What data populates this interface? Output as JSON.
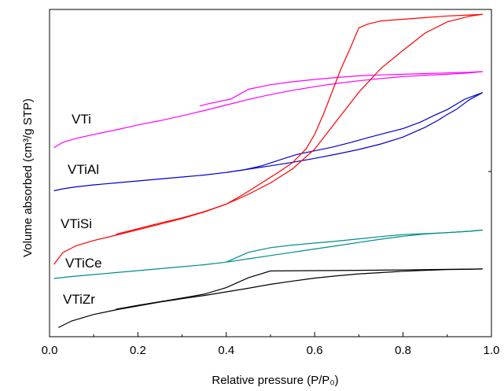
{
  "chart_data": {
    "type": "line",
    "xlabel": "Relative pressure (P/P₀)",
    "ylabel": "Volume absorbed (cm³/g STP)",
    "xlim": [
      0,
      1
    ],
    "ylim": [
      0,
      1
    ],
    "x_ticks": [
      "0.0",
      "0.2",
      "0.4",
      "0.6",
      "0.8",
      "1.0"
    ],
    "y_ticks": [],
    "grid": false,
    "series": [
      {
        "name": "VTi",
        "color": "#ff00ff",
        "adsorption": [
          [
            0.01,
            0.578
          ],
          [
            0.03,
            0.594
          ],
          [
            0.06,
            0.606
          ],
          [
            0.1,
            0.618
          ],
          [
            0.15,
            0.632
          ],
          [
            0.2,
            0.647
          ],
          [
            0.25,
            0.66
          ],
          [
            0.3,
            0.675
          ],
          [
            0.35,
            0.691
          ],
          [
            0.4,
            0.708
          ],
          [
            0.45,
            0.725
          ],
          [
            0.5,
            0.74
          ],
          [
            0.55,
            0.753
          ],
          [
            0.6,
            0.764
          ],
          [
            0.65,
            0.774
          ],
          [
            0.7,
            0.782
          ],
          [
            0.75,
            0.789
          ],
          [
            0.8,
            0.795
          ],
          [
            0.85,
            0.799
          ],
          [
            0.9,
            0.802
          ],
          [
            0.95,
            0.806
          ],
          [
            0.98,
            0.81
          ]
        ],
        "desorption": [
          [
            0.98,
            0.81
          ],
          [
            0.95,
            0.808
          ],
          [
            0.9,
            0.806
          ],
          [
            0.85,
            0.804
          ],
          [
            0.8,
            0.802
          ],
          [
            0.75,
            0.8
          ],
          [
            0.7,
            0.797
          ],
          [
            0.65,
            0.792
          ],
          [
            0.6,
            0.786
          ],
          [
            0.55,
            0.779
          ],
          [
            0.5,
            0.77
          ],
          [
            0.45,
            0.756
          ],
          [
            0.41,
            0.726
          ],
          [
            0.36,
            0.712
          ],
          [
            0.34,
            0.705
          ]
        ]
      },
      {
        "name": "VTiAl",
        "color": "#0000cc",
        "adsorption": [
          [
            0.01,
            0.446
          ],
          [
            0.03,
            0.452
          ],
          [
            0.06,
            0.458
          ],
          [
            0.1,
            0.464
          ],
          [
            0.15,
            0.47
          ],
          [
            0.2,
            0.476
          ],
          [
            0.25,
            0.482
          ],
          [
            0.3,
            0.488
          ],
          [
            0.35,
            0.494
          ],
          [
            0.4,
            0.502
          ],
          [
            0.45,
            0.512
          ],
          [
            0.5,
            0.522
          ],
          [
            0.55,
            0.533
          ],
          [
            0.6,
            0.545
          ],
          [
            0.65,
            0.558
          ],
          [
            0.7,
            0.572
          ],
          [
            0.75,
            0.589
          ],
          [
            0.8,
            0.61
          ],
          [
            0.85,
            0.64
          ],
          [
            0.88,
            0.662
          ],
          [
            0.9,
            0.679
          ],
          [
            0.92,
            0.694
          ],
          [
            0.95,
            0.724
          ],
          [
            0.98,
            0.746
          ]
        ],
        "desorption": [
          [
            0.98,
            0.746
          ],
          [
            0.96,
            0.736
          ],
          [
            0.94,
            0.726
          ],
          [
            0.92,
            0.71
          ],
          [
            0.9,
            0.694
          ],
          [
            0.87,
            0.676
          ],
          [
            0.84,
            0.656
          ],
          [
            0.8,
            0.636
          ],
          [
            0.76,
            0.622
          ],
          [
            0.72,
            0.608
          ],
          [
            0.68,
            0.593
          ],
          [
            0.64,
            0.579
          ],
          [
            0.6,
            0.568
          ],
          [
            0.56,
            0.557
          ],
          [
            0.52,
            0.54
          ],
          [
            0.48,
            0.522
          ],
          [
            0.44,
            0.51
          ],
          [
            0.4,
            0.502
          ]
        ]
      },
      {
        "name": "VTiSi",
        "color": "#ff0000",
        "adsorption": [
          [
            0.01,
            0.221
          ],
          [
            0.03,
            0.257
          ],
          [
            0.06,
            0.278
          ],
          [
            0.1,
            0.294
          ],
          [
            0.15,
            0.31
          ],
          [
            0.2,
            0.327
          ],
          [
            0.25,
            0.344
          ],
          [
            0.3,
            0.361
          ],
          [
            0.35,
            0.381
          ],
          [
            0.4,
            0.405
          ],
          [
            0.45,
            0.435
          ],
          [
            0.5,
            0.47
          ],
          [
            0.55,
            0.513
          ],
          [
            0.6,
            0.573
          ],
          [
            0.65,
            0.66
          ],
          [
            0.7,
            0.747
          ],
          [
            0.75,
            0.82
          ],
          [
            0.8,
            0.875
          ],
          [
            0.85,
            0.928
          ],
          [
            0.9,
            0.962
          ],
          [
            0.95,
            0.979
          ],
          [
            0.98,
            0.985
          ]
        ],
        "desorption": [
          [
            0.98,
            0.985
          ],
          [
            0.95,
            0.983
          ],
          [
            0.9,
            0.98
          ],
          [
            0.85,
            0.975
          ],
          [
            0.8,
            0.97
          ],
          [
            0.75,
            0.965
          ],
          [
            0.72,
            0.955
          ],
          [
            0.7,
            0.944
          ],
          [
            0.68,
            0.88
          ],
          [
            0.66,
            0.82
          ],
          [
            0.64,
            0.75
          ],
          [
            0.62,
            0.68
          ],
          [
            0.6,
            0.618
          ],
          [
            0.58,
            0.573
          ],
          [
            0.55,
            0.532
          ],
          [
            0.52,
            0.504
          ],
          [
            0.48,
            0.47
          ],
          [
            0.44,
            0.436
          ],
          [
            0.4,
            0.405
          ],
          [
            0.35,
            0.382
          ],
          [
            0.3,
            0.363
          ],
          [
            0.25,
            0.347
          ],
          [
            0.2,
            0.33
          ],
          [
            0.15,
            0.313
          ]
        ]
      },
      {
        "name": "VTiCe",
        "color": "#008b8b",
        "adsorption": [
          [
            0.01,
            0.178
          ],
          [
            0.05,
            0.184
          ],
          [
            0.1,
            0.19
          ],
          [
            0.15,
            0.196
          ],
          [
            0.2,
            0.202
          ],
          [
            0.25,
            0.208
          ],
          [
            0.3,
            0.214
          ],
          [
            0.35,
            0.22
          ],
          [
            0.4,
            0.228
          ],
          [
            0.45,
            0.238
          ],
          [
            0.5,
            0.248
          ],
          [
            0.55,
            0.258
          ],
          [
            0.6,
            0.268
          ],
          [
            0.65,
            0.278
          ],
          [
            0.7,
            0.288
          ],
          [
            0.75,
            0.298
          ],
          [
            0.8,
            0.307
          ],
          [
            0.85,
            0.314
          ],
          [
            0.9,
            0.318
          ],
          [
            0.95,
            0.322
          ],
          [
            0.98,
            0.326
          ]
        ],
        "desorption": [
          [
            0.98,
            0.326
          ],
          [
            0.95,
            0.322
          ],
          [
            0.9,
            0.318
          ],
          [
            0.85,
            0.315
          ],
          [
            0.8,
            0.312
          ],
          [
            0.75,
            0.306
          ],
          [
            0.7,
            0.299
          ],
          [
            0.65,
            0.292
          ],
          [
            0.6,
            0.286
          ],
          [
            0.55,
            0.28
          ],
          [
            0.5,
            0.272
          ],
          [
            0.45,
            0.258
          ],
          [
            0.4,
            0.228
          ]
        ]
      },
      {
        "name": "VTiZr",
        "color": "#000000",
        "adsorption": [
          [
            0.02,
            0.028
          ],
          [
            0.05,
            0.048
          ],
          [
            0.1,
            0.068
          ],
          [
            0.15,
            0.082
          ],
          [
            0.2,
            0.094
          ],
          [
            0.25,
            0.106
          ],
          [
            0.3,
            0.116
          ],
          [
            0.35,
            0.126
          ],
          [
            0.4,
            0.137
          ],
          [
            0.45,
            0.148
          ],
          [
            0.5,
            0.16
          ],
          [
            0.55,
            0.17
          ],
          [
            0.6,
            0.179
          ],
          [
            0.65,
            0.186
          ],
          [
            0.7,
            0.192
          ],
          [
            0.75,
            0.196
          ],
          [
            0.8,
            0.2
          ],
          [
            0.85,
            0.203
          ],
          [
            0.9,
            0.205
          ],
          [
            0.95,
            0.206
          ],
          [
            0.98,
            0.207
          ]
        ],
        "desorption": [
          [
            0.98,
            0.207
          ],
          [
            0.9,
            0.206
          ],
          [
            0.8,
            0.204
          ],
          [
            0.7,
            0.203
          ],
          [
            0.6,
            0.202
          ],
          [
            0.5,
            0.201
          ],
          [
            0.45,
            0.18
          ],
          [
            0.4,
            0.15
          ],
          [
            0.35,
            0.13
          ],
          [
            0.3,
            0.118
          ],
          [
            0.25,
            0.107
          ],
          [
            0.2,
            0.096
          ],
          [
            0.15,
            0.084
          ]
        ]
      }
    ]
  }
}
